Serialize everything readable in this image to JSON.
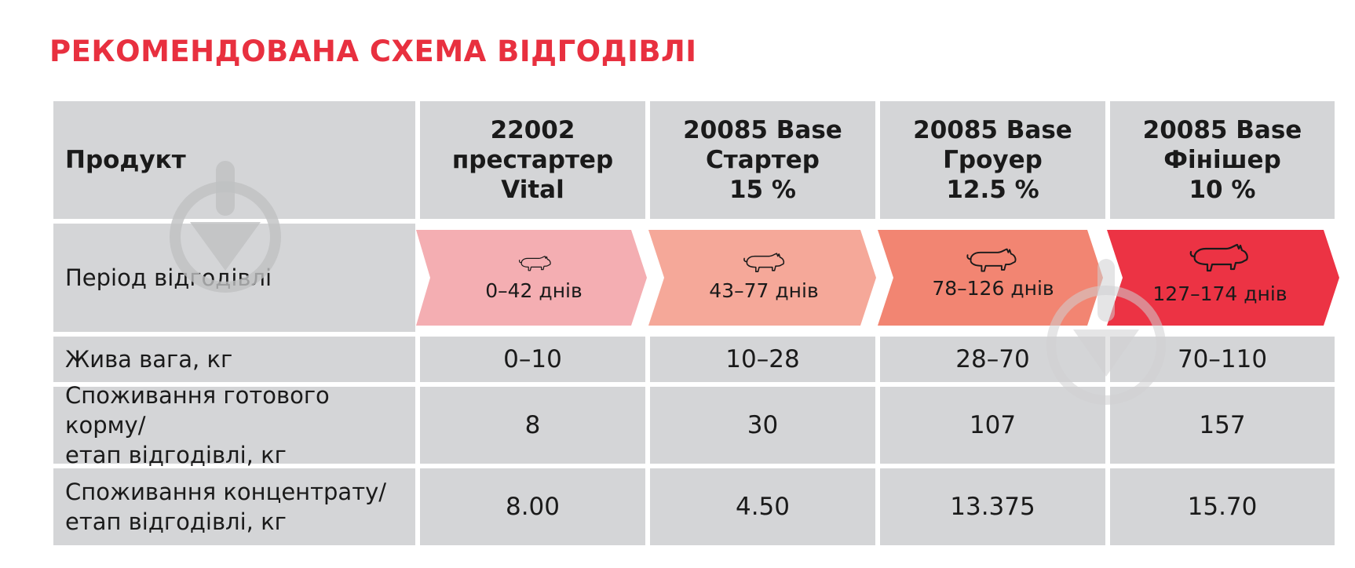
{
  "title": "РЕКОМЕНДОВАНА СХЕМА ВІДГОДІВЛІ",
  "row_labels": {
    "product": "Продукт",
    "period": "Період відгодівлі",
    "live_weight": "Жива вага, кг",
    "feed_line1": "Споживання готового корму/",
    "feed_line2": "етап відгодівлі, кг",
    "conc_line1": "Споживання концентрату/",
    "conc_line2": "етап відгодівлі, кг"
  },
  "products": [
    {
      "line1": "22002",
      "line2": "престартер",
      "line3": "Vital",
      "period": "0–42 днів",
      "weight": "0–10",
      "feed": "8",
      "concentrate": "8.00",
      "color": "#f4aeb2"
    },
    {
      "line1": "20085 Base",
      "line2": "Стартер",
      "line3": "15 %",
      "period": "43–77 днів",
      "weight": "10–28",
      "feed": "30",
      "concentrate": "4.50",
      "color": "#f5a899"
    },
    {
      "line1": "20085 Base",
      "line2": "Гроуер",
      "line3": "12.5 %",
      "period": "78–126 днів",
      "weight": "28–70",
      "feed": "107",
      "concentrate": "13.375",
      "color": "#f28572"
    },
    {
      "line1": "20085 Base",
      "line2": "Фінішер",
      "line3": "10 %",
      "period": "127–174 днів",
      "weight": "70–110",
      "feed": "157",
      "concentrate": "15.70",
      "color": "#ec3344"
    }
  ],
  "icons": [
    "pig-icon",
    "watermark-download-icon"
  ]
}
